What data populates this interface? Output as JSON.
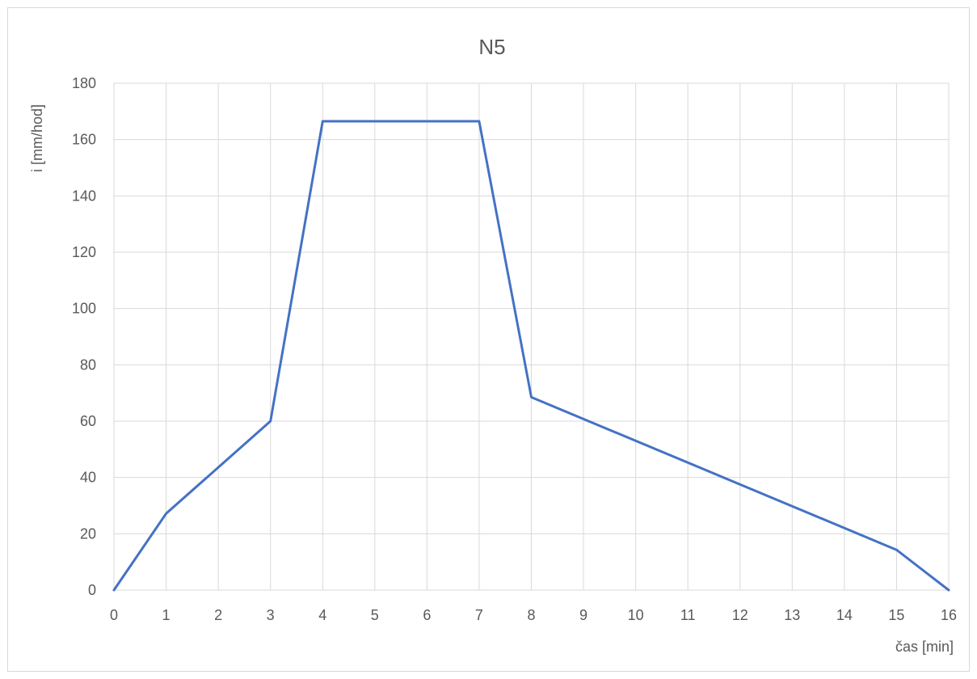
{
  "chart_data": {
    "type": "line",
    "title": "N5",
    "xlabel": "čas [min]",
    "ylabel": "i [mm/hod]",
    "xlim": [
      0,
      16
    ],
    "ylim": [
      0,
      180
    ],
    "xticks": [
      0,
      1,
      2,
      3,
      4,
      5,
      6,
      7,
      8,
      9,
      10,
      11,
      12,
      13,
      14,
      15,
      16
    ],
    "yticks": [
      0,
      20,
      40,
      60,
      80,
      100,
      120,
      140,
      160,
      180
    ],
    "grid": true,
    "legend": "none",
    "series": [
      {
        "x": [
          0,
          1,
          3,
          4,
          7,
          8,
          15,
          16
        ],
        "y": [
          0,
          27.2,
          60,
          166.5,
          166.5,
          68.5,
          14.3,
          0
        ]
      }
    ],
    "colors": {
      "line": "#4472c4",
      "grid": "#d9d9d9",
      "text": "#595959"
    }
  }
}
